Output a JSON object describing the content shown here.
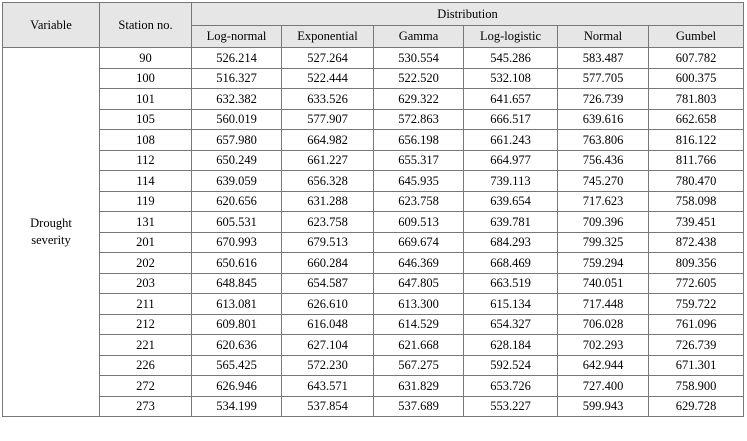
{
  "header": {
    "variable": "Variable",
    "station": "Station no.",
    "distribution": "Distribution",
    "distributions": [
      "Log-normal",
      "Exponential",
      "Gamma",
      "Log-logistic",
      "Normal",
      "Gumbel"
    ]
  },
  "variable_line1": "Drought",
  "variable_line2": "severity",
  "rows": [
    {
      "station": "90",
      "values": [
        "526.214",
        "527.264",
        "530.554",
        "545.286",
        "583.487",
        "607.782"
      ]
    },
    {
      "station": "100",
      "values": [
        "516.327",
        "522.444",
        "522.520",
        "532.108",
        "577.705",
        "600.375"
      ]
    },
    {
      "station": "101",
      "values": [
        "632.382",
        "633.526",
        "629.322",
        "641.657",
        "726.739",
        "781.803"
      ]
    },
    {
      "station": "105",
      "values": [
        "560.019",
        "577.907",
        "572.863",
        "666.517",
        "639.616",
        "662.658"
      ]
    },
    {
      "station": "108",
      "values": [
        "657.980",
        "664.982",
        "656.198",
        "661.243",
        "763.806",
        "816.122"
      ]
    },
    {
      "station": "112",
      "values": [
        "650.249",
        "661.227",
        "655.317",
        "664.977",
        "756.436",
        "811.766"
      ]
    },
    {
      "station": "114",
      "values": [
        "639.059",
        "656.328",
        "645.935",
        "739.113",
        "745.270",
        "780.470"
      ]
    },
    {
      "station": "119",
      "values": [
        "620.656",
        "631.288",
        "623.758",
        "639.654",
        "717.623",
        "758.098"
      ]
    },
    {
      "station": "131",
      "values": [
        "605.531",
        "623.758",
        "609.513",
        "639.781",
        "709.396",
        "739.451"
      ]
    },
    {
      "station": "201",
      "values": [
        "670.993",
        "679.513",
        "669.674",
        "684.293",
        "799.325",
        "872.438"
      ]
    },
    {
      "station": "202",
      "values": [
        "650.616",
        "660.284",
        "646.369",
        "668.469",
        "759.294",
        "809.356"
      ]
    },
    {
      "station": "203",
      "values": [
        "648.845",
        "654.587",
        "647.805",
        "663.519",
        "740.051",
        "772.605"
      ]
    },
    {
      "station": "211",
      "values": [
        "613.081",
        "626.610",
        "613.300",
        "615.134",
        "717.448",
        "759.722"
      ]
    },
    {
      "station": "212",
      "values": [
        "609.801",
        "616.048",
        "614.529",
        "654.327",
        "706.028",
        "761.096"
      ]
    },
    {
      "station": "221",
      "values": [
        "620.636",
        "627.104",
        "621.668",
        "628.184",
        "702.293",
        "726.739"
      ]
    },
    {
      "station": "226",
      "values": [
        "565.425",
        "572.230",
        "567.275",
        "592.524",
        "642.944",
        "671.301"
      ]
    },
    {
      "station": "272",
      "values": [
        "626.946",
        "643.571",
        "631.829",
        "653.726",
        "727.400",
        "758.900"
      ]
    },
    {
      "station": "273",
      "values": [
        "534.199",
        "537.854",
        "537.689",
        "553.227",
        "599.943",
        "629.728"
      ]
    }
  ]
}
